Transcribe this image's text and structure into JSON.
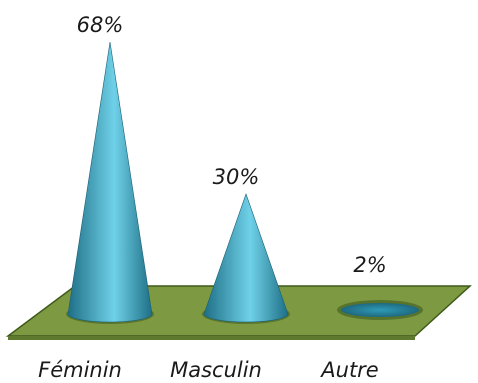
{
  "chart_data": {
    "type": "bar",
    "style": "3d-cone",
    "categories": [
      "Féminin",
      "Masculin",
      "Autre"
    ],
    "values": [
      68,
      30,
      2
    ],
    "data_labels": [
      "68%",
      "30%",
      "2%"
    ],
    "ylim": [
      0,
      68
    ],
    "grid": false,
    "legend": "none",
    "title": "",
    "xlabel": "",
    "ylabel": "",
    "colors": {
      "cone_dark": "#1e6f86",
      "cone_mid": "#2e9bb8",
      "cone_light": "#6fd1e8",
      "floor": "#7d9a43",
      "floor_edge": "#3f5a1c",
      "floor_side": "#5f7a2e"
    }
  }
}
